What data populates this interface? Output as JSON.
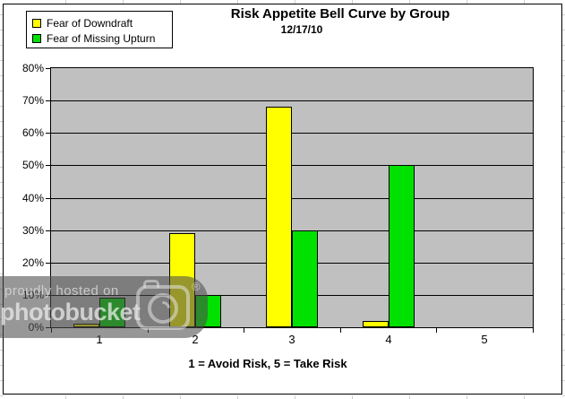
{
  "chart_data": {
    "type": "bar",
    "title": "Risk Appetite Bell Curve by Group",
    "subtitle": "12/17/10",
    "categories": [
      "1",
      "2",
      "3",
      "4",
      "5"
    ],
    "series": [
      {
        "name": "Fear of Downdraft",
        "color": "#FFFF00",
        "values": [
          1,
          29,
          68,
          2,
          0
        ]
      },
      {
        "name": "Fear of Missing Upturn",
        "color": "#00E100",
        "values": [
          9,
          10,
          30,
          50,
          0
        ]
      }
    ],
    "xlabel": "1 = Avoid Risk, 5 = Take Risk",
    "ylabel": "",
    "ylim": [
      0,
      80
    ],
    "ytick_step": 10,
    "ytick_labels": [
      "0%",
      "10%",
      "20%",
      "30%",
      "40%",
      "50%",
      "60%",
      "70%",
      "80%"
    ],
    "grid": true,
    "legend_position": "top-left",
    "plot_bg": "#C0C0C0"
  },
  "watermark": {
    "line1": "proudly hosted on",
    "brand": "photobucket",
    "registered": "®"
  }
}
